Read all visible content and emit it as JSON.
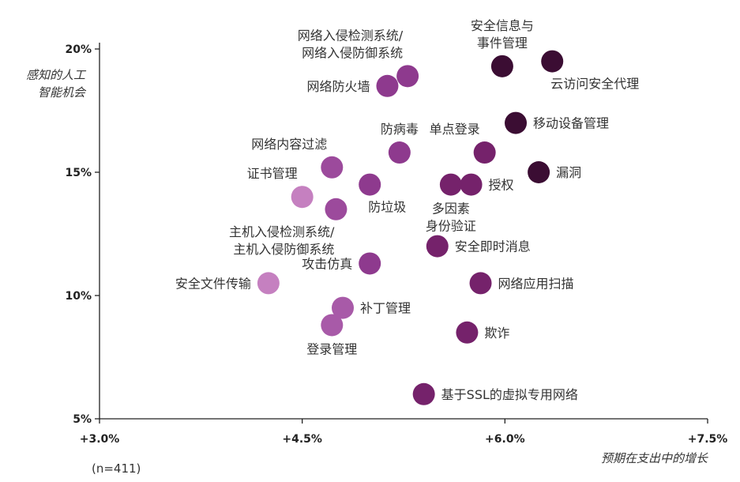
{
  "chart_data": {
    "type": "scatter",
    "ylabel": [
      "感知的人工",
      "智能机会"
    ],
    "xlabel": "预期在支出中的增长",
    "note": "(n=411)",
    "xlim": [
      3.0,
      7.5
    ],
    "ylim": [
      5,
      20
    ],
    "xticks": [
      {
        "value": 3.0,
        "label": "+3.0%"
      },
      {
        "value": 4.5,
        "label": "+4.5%"
      },
      {
        "value": 6.0,
        "label": "+6.0%"
      },
      {
        "value": 7.5,
        "label": "+7.5%"
      }
    ],
    "yticks": [
      {
        "value": 5,
        "label": "5%"
      },
      {
        "value": 10,
        "label": "10%"
      },
      {
        "value": 15,
        "label": "15%"
      },
      {
        "value": 20,
        "label": "20%"
      }
    ],
    "points": [
      {
        "label": [
          "安全信息与",
          "事件管理"
        ],
        "x": 5.98,
        "y": 19.3,
        "color": "#3b0d33",
        "pos": "above"
      },
      {
        "label": [
          "云访问安全代理"
        ],
        "x": 6.35,
        "y": 19.5,
        "color": "#3b0d33",
        "pos": "below-right"
      },
      {
        "label": [
          "网络入侵检测系统/",
          "网络入侵防御系统"
        ],
        "x": 5.28,
        "y": 18.9,
        "color": "#8e3a8e",
        "pos": "above-left"
      },
      {
        "label": [
          "网络防火墙"
        ],
        "x": 5.13,
        "y": 18.5,
        "color": "#8e3a8e",
        "pos": "left"
      },
      {
        "label": [
          "移动设备管理"
        ],
        "x": 6.08,
        "y": 17.0,
        "color": "#3b0d33",
        "pos": "right"
      },
      {
        "label": [
          "防病毒"
        ],
        "x": 5.22,
        "y": 15.8,
        "color": "#8e3a8e",
        "pos": "above"
      },
      {
        "label": [
          "单点登录"
        ],
        "x": 5.85,
        "y": 15.8,
        "color": "#75226b",
        "pos": "above-left"
      },
      {
        "label": [
          "网络内容过滤"
        ],
        "x": 4.72,
        "y": 15.2,
        "color": "#9c4a9c",
        "pos": "above-left"
      },
      {
        "label": [
          "漏洞"
        ],
        "x": 6.25,
        "y": 15.0,
        "color": "#3b0d33",
        "pos": "right"
      },
      {
        "label": [
          "授权"
        ],
        "x": 5.75,
        "y": 14.5,
        "color": "#75226b",
        "pos": "right"
      },
      {
        "label": [
          "多因素",
          "身份验证"
        ],
        "x": 5.6,
        "y": 14.5,
        "color": "#75226b",
        "pos": "below"
      },
      {
        "label": [
          "防垃圾"
        ],
        "x": 5.0,
        "y": 14.5,
        "color": "#8e3a8e",
        "pos": "below-right"
      },
      {
        "label": [
          "证书管理"
        ],
        "x": 4.5,
        "y": 14.0,
        "color": "#c580c0",
        "pos": "above-left"
      },
      {
        "label": [
          "主机入侵检测系统/",
          "主机入侵防御系统"
        ],
        "x": 4.75,
        "y": 13.5,
        "color": "#9c4a9c",
        "pos": "below-left"
      },
      {
        "label": [
          "安全即时消息"
        ],
        "x": 5.5,
        "y": 12.0,
        "color": "#75226b",
        "pos": "right"
      },
      {
        "label": [
          "攻击仿真"
        ],
        "x": 5.0,
        "y": 11.3,
        "color": "#8e3a8e",
        "pos": "left"
      },
      {
        "label": [
          "安全文件传输"
        ],
        "x": 4.25,
        "y": 10.5,
        "color": "#c580c0",
        "pos": "left"
      },
      {
        "label": [
          "网络应用扫描"
        ],
        "x": 5.82,
        "y": 10.5,
        "color": "#75226b",
        "pos": "right"
      },
      {
        "label": [
          "补丁管理"
        ],
        "x": 4.8,
        "y": 9.5,
        "color": "#a85aa8",
        "pos": "right"
      },
      {
        "label": [
          "登录管理"
        ],
        "x": 4.72,
        "y": 8.8,
        "color": "#a85aa8",
        "pos": "below"
      },
      {
        "label": [
          "欺诈"
        ],
        "x": 5.72,
        "y": 8.5,
        "color": "#75226b",
        "pos": "right"
      },
      {
        "label": [
          "基于SSL的虚拟专用网络"
        ],
        "x": 5.4,
        "y": 6.0,
        "color": "#75226b",
        "pos": "right"
      }
    ]
  }
}
